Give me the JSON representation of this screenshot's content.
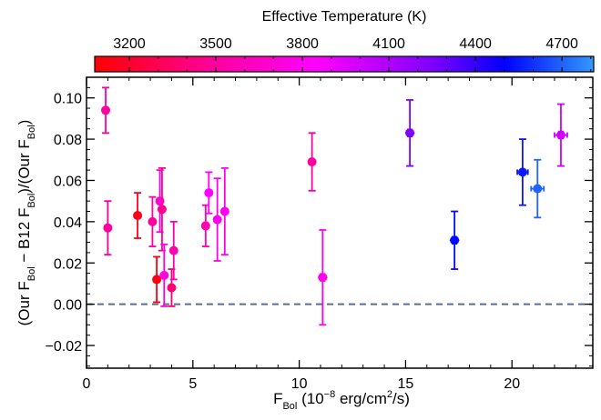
{
  "chart_data": {
    "type": "scatter",
    "title": "",
    "xlabel": {
      "main": "F",
      "sub": "Bol",
      "units": " (10",
      "exp": "−8",
      "units2": " erg/cm",
      "exp2": "2",
      "units3": "/s)"
    },
    "ylabel": {
      "parts": [
        {
          "t": "(Our F"
        },
        {
          "t": "Bol",
          "sub": true
        },
        {
          "t": " − B12 F"
        },
        {
          "t": "Bol",
          "sub": true
        },
        {
          "t": ")/(Our F"
        },
        {
          "t": "Bol",
          "sub": true
        },
        {
          "t": ")"
        }
      ]
    },
    "xlim": [
      0,
      23.8
    ],
    "ylim": [
      -0.031,
      0.11
    ],
    "x_ticks": [
      0,
      5,
      10,
      15,
      20
    ],
    "x_tick_labels": [
      "0",
      "5",
      "10",
      "15",
      "20"
    ],
    "y_ticks": [
      -0.02,
      0.0,
      0.02,
      0.04,
      0.06,
      0.08,
      0.1
    ],
    "y_tick_labels": [
      "−0.02",
      "0.00",
      "0.02",
      "0.04",
      "0.06",
      "0.08",
      "0.10"
    ],
    "reference_line": {
      "y": 0.0,
      "style": "dashed",
      "color": "#5a6f8c"
    },
    "colorbar": {
      "title": "Effective Temperature (K)",
      "range": [
        3080,
        4810
      ],
      "ticks": [
        3200,
        3500,
        3800,
        4100,
        4400,
        4700
      ],
      "tick_labels": [
        "3200",
        "3500",
        "3800",
        "4100",
        "4400",
        "4700"
      ],
      "colormap": [
        {
          "t": 3080,
          "color": "#ff0000"
        },
        {
          "t": 3500,
          "color": "#ff00a0"
        },
        {
          "t": 3850,
          "color": "#ff00ff"
        },
        {
          "t": 4250,
          "color": "#8000ff"
        },
        {
          "t": 4500,
          "color": "#0000ff"
        },
        {
          "t": 4810,
          "color": "#3399ff"
        }
      ]
    },
    "points": [
      {
        "x": 0.9,
        "y": 0.094,
        "yerr": 0.011,
        "xerr": 0.0,
        "teff": 3500,
        "marker": "circle"
      },
      {
        "x": 1.0,
        "y": 0.037,
        "yerr": 0.013,
        "xerr": 0.0,
        "teff": 3500,
        "marker": "circle"
      },
      {
        "x": 2.4,
        "y": 0.043,
        "yerr": 0.011,
        "xerr": 0.0,
        "teff": 3150,
        "marker": "circle"
      },
      {
        "x": 3.1,
        "y": 0.04,
        "yerr": 0.012,
        "xerr": 0.0,
        "teff": 3500,
        "marker": "circle"
      },
      {
        "x": 3.3,
        "y": 0.012,
        "yerr": 0.011,
        "xerr": 0.0,
        "teff": 3120,
        "marker": "circle"
      },
      {
        "x": 3.45,
        "y": 0.05,
        "yerr": 0.015,
        "xerr": 0.0,
        "teff": 3700,
        "marker": "circle"
      },
      {
        "x": 3.55,
        "y": 0.046,
        "yerr": 0.02,
        "xerr": 0.0,
        "teff": 3450,
        "marker": "circle"
      },
      {
        "x": 3.65,
        "y": 0.014,
        "yerr": 0.015,
        "xerr": 0.0,
        "teff": 3750,
        "marker": "circle"
      },
      {
        "x": 4.0,
        "y": 0.008,
        "yerr": 0.009,
        "xerr": 0.0,
        "teff": 3380,
        "marker": "circle"
      },
      {
        "x": 4.1,
        "y": 0.026,
        "yerr": 0.014,
        "xerr": 0.0,
        "teff": 3550,
        "marker": "circle"
      },
      {
        "x": 5.6,
        "y": 0.038,
        "yerr": 0.01,
        "xerr": 0.0,
        "teff": 3550,
        "marker": "circle"
      },
      {
        "x": 5.75,
        "y": 0.054,
        "yerr": 0.01,
        "xerr": 0.0,
        "teff": 3850,
        "marker": "circle"
      },
      {
        "x": 6.15,
        "y": 0.041,
        "yerr": 0.02,
        "xerr": 0.0,
        "teff": 3800,
        "marker": "circle"
      },
      {
        "x": 6.5,
        "y": 0.045,
        "yerr": 0.021,
        "xerr": 0.0,
        "teff": 3800,
        "marker": "circle"
      },
      {
        "x": 10.6,
        "y": 0.069,
        "yerr": 0.014,
        "xerr": 0.0,
        "teff": 3500,
        "marker": "circle"
      },
      {
        "x": 11.1,
        "y": 0.013,
        "yerr": 0.023,
        "xerr": 0.15,
        "teff": 3800,
        "marker": "hexagon"
      },
      {
        "x": 15.2,
        "y": 0.083,
        "yerr": 0.016,
        "xerr": 0.15,
        "teff": 4250,
        "marker": "hexagon"
      },
      {
        "x": 17.3,
        "y": 0.031,
        "yerr": 0.014,
        "xerr": 0.15,
        "teff": 4520,
        "marker": "hexagon"
      },
      {
        "x": 20.5,
        "y": 0.064,
        "yerr": 0.016,
        "xerr": 0.25,
        "teff": 4550,
        "marker": "circle"
      },
      {
        "x": 21.2,
        "y": 0.056,
        "yerr": 0.014,
        "xerr": 0.3,
        "teff": 4700,
        "marker": "circle"
      },
      {
        "x": 22.3,
        "y": 0.082,
        "yerr": 0.015,
        "xerr": 0.3,
        "teff": 4000,
        "marker": "hexagon"
      }
    ]
  }
}
